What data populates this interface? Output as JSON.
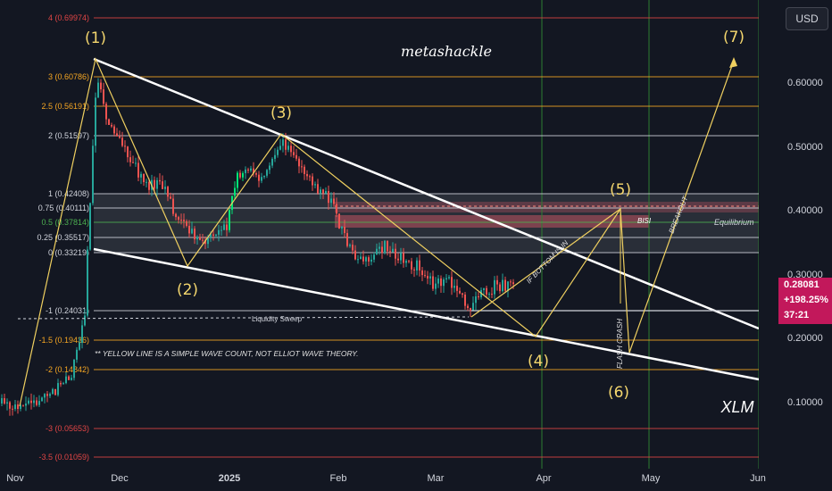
{
  "header": {
    "currency_button": "USD"
  },
  "watermark": "metashackle",
  "symbol": "XLM",
  "price_label": {
    "price": "0.28081",
    "change": "+198.25%",
    "countdown": "37:21",
    "color": "#c2185b"
  },
  "colors": {
    "background": "#131722",
    "bull": "#26a69a",
    "bull_bright": "#00e676",
    "bear": "#ef5350",
    "fib_orange": "#f5a623",
    "fib_white": "#d1d4dc",
    "fib_red": "#e04545",
    "wave_yellow": "#f0d060",
    "channel": "#ffffff",
    "bisi_zone": "#e35b6a",
    "vline": "#2e7d32"
  },
  "chart_data": {
    "type": "candlestick",
    "y_axis": {
      "scale": "log",
      "ticks": [
        "0.60000",
        "0.50000",
        "0.40000",
        "0.30000",
        "0.20000",
        "0.10000"
      ]
    },
    "x_axis": {
      "ticks": [
        "Nov",
        "Dec",
        "2025",
        "Feb",
        "Mar",
        "Apr",
        "May",
        "Jun"
      ]
    },
    "fib_levels": [
      {
        "label": "4 (0.69974)",
        "value": 0.69974,
        "color": "red"
      },
      {
        "label": "3 (0.60786)",
        "value": 0.60786,
        "color": "orange"
      },
      {
        "label": "2.5 (0.56191)",
        "value": 0.56191,
        "color": "orange"
      },
      {
        "label": "2 (0.51597)",
        "value": 0.51597,
        "color": "white"
      },
      {
        "label": "1 (0.42408)",
        "value": 0.42408,
        "color": "white"
      },
      {
        "label": "0.75 (0.40111)",
        "value": 0.40111,
        "color": "white"
      },
      {
        "label": "0.5 (0.37814)",
        "value": 0.37814,
        "color": "green"
      },
      {
        "label": "0.25 (0.35517)",
        "value": 0.35517,
        "color": "white"
      },
      {
        "label": "0 (0.33219)",
        "value": 0.33219,
        "color": "white"
      },
      {
        "label": "-1 (0.24031)",
        "value": 0.24031,
        "color": "white"
      },
      {
        "label": "-1.5 (0.19436)",
        "value": 0.19436,
        "color": "orange"
      },
      {
        "label": "-2 (0.14842)",
        "value": 0.14842,
        "color": "orange"
      },
      {
        "label": "-3 (0.05653)",
        "value": 0.05653,
        "color": "red"
      },
      {
        "label": "-3.5 (0.01059)",
        "value": 0.01059,
        "color": "red"
      }
    ],
    "wave_labels": [
      "(1)",
      "(2)",
      "(3)",
      "(4)",
      "(5)",
      "(6)",
      "(7)"
    ],
    "annotations": {
      "equilibrium": "Equilibrium",
      "bisi": "BISI",
      "liquidity_sweep": "Liquidity Sweep",
      "note": "** YELLOW LINE IS A SIMPLE WAVE COUNT, NOT ELLIOT WAVE THEORY.",
      "if_bottom": "IF BOTTOM IS IN",
      "flash_crash": "FLASH CRASH",
      "breakout": "BREAKOUT"
    }
  }
}
